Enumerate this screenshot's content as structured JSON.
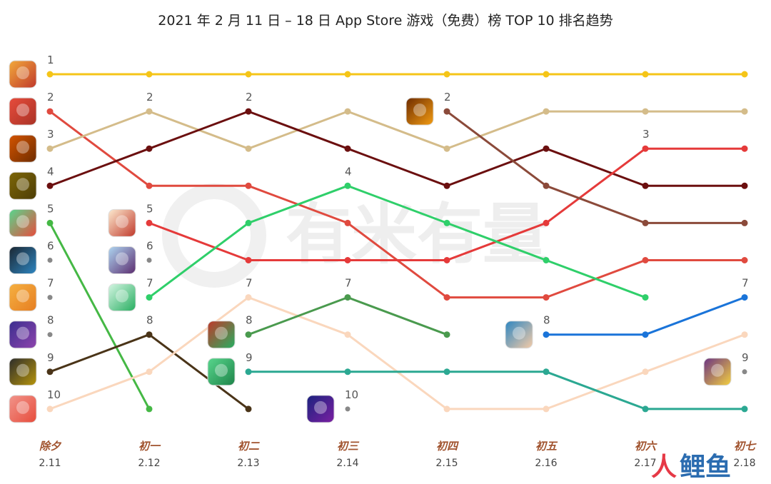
{
  "title": "2021 年 2 月 11 日 – 18 日 App Store 游戏（免费）榜 TOP 10 排名趋势",
  "watermark": "有米有量",
  "corner_logo": {
    "part1": "人",
    "part2": "鲤鱼"
  },
  "chart_data": {
    "type": "line",
    "title": "2021 年 2 月 11 日 – 18 日 App Store 游戏（免费）榜 TOP 10 排名趋势",
    "y_axis": "rank",
    "ylim": [
      1,
      10
    ],
    "y_inverted": true,
    "x_days": [
      "除夕",
      "初一",
      "初二",
      "初三",
      "初四",
      "初五",
      "初六",
      "初七"
    ],
    "x_dates": [
      "2.11",
      "2.12",
      "2.13",
      "2.14",
      "2.15",
      "2.16",
      "2.17",
      "2.18"
    ],
    "series": [
      {
        "color": "#f5c518",
        "values": [
          1,
          1,
          1,
          1,
          1,
          1,
          1,
          1
        ]
      },
      {
        "color": "#e04a3f",
        "values": [
          2,
          4,
          4,
          5,
          7,
          7,
          6,
          6
        ]
      },
      {
        "color": "#d4bc8a",
        "values": [
          3,
          2,
          3,
          2,
          3,
          2,
          2,
          2
        ]
      },
      {
        "color": "#6b0f0f",
        "values": [
          4,
          3,
          2,
          3,
          4,
          3,
          4,
          4
        ]
      },
      {
        "color": "#45b845",
        "values": [
          5,
          10,
          null,
          null,
          null,
          null,
          null,
          null
        ]
      },
      {
        "color": "#4a3418",
        "values": [
          9,
          8,
          10,
          null,
          null,
          null,
          null,
          null
        ]
      },
      {
        "color": "#fad7bd",
        "values": [
          10,
          9,
          7,
          8,
          10,
          10,
          9,
          8
        ]
      },
      {
        "color": "#e53a3a",
        "values": [
          null,
          5,
          6,
          6,
          6,
          5,
          3,
          3
        ]
      },
      {
        "color": "#2fcf6a",
        "values": [
          null,
          7,
          5,
          4,
          5,
          6,
          7,
          null
        ]
      },
      {
        "color": "#4a9a4e",
        "values": [
          null,
          null,
          8,
          7,
          8,
          null,
          null,
          null
        ]
      },
      {
        "color": "#2ba892",
        "values": [
          null,
          null,
          9,
          9,
          9,
          9,
          10,
          10
        ]
      },
      {
        "color": "#8b4a3a",
        "values": [
          null,
          null,
          null,
          null,
          2,
          4,
          5,
          5
        ]
      },
      {
        "color": "#1a74d9",
        "values": [
          null,
          null,
          null,
          null,
          null,
          8,
          8,
          7
        ]
      }
    ],
    "new_entry_labels": [
      {
        "col": 0,
        "rank": 1,
        "text": "1"
      },
      {
        "col": 0,
        "rank": 2,
        "text": "2"
      },
      {
        "col": 0,
        "rank": 3,
        "text": "3"
      },
      {
        "col": 0,
        "rank": 4,
        "text": "4"
      },
      {
        "col": 0,
        "rank": 5,
        "text": "5"
      },
      {
        "col": 0,
        "rank": 6,
        "text": "6"
      },
      {
        "col": 0,
        "rank": 7,
        "text": "7"
      },
      {
        "col": 0,
        "rank": 8,
        "text": "8"
      },
      {
        "col": 0,
        "rank": 9,
        "text": "9"
      },
      {
        "col": 0,
        "rank": 10,
        "text": "10"
      },
      {
        "col": 1,
        "rank": 2,
        "text": "2"
      },
      {
        "col": 1,
        "rank": 5,
        "text": "5"
      },
      {
        "col": 1,
        "rank": 6,
        "text": "6"
      },
      {
        "col": 1,
        "rank": 7,
        "text": "7"
      },
      {
        "col": 1,
        "rank": 8,
        "text": "8"
      },
      {
        "col": 2,
        "rank": 2,
        "text": "2"
      },
      {
        "col": 2,
        "rank": 7,
        "text": "7"
      },
      {
        "col": 2,
        "rank": 8,
        "text": "8"
      },
      {
        "col": 2,
        "rank": 9,
        "text": "9"
      },
      {
        "col": 3,
        "rank": 4,
        "text": "4"
      },
      {
        "col": 3,
        "rank": 7,
        "text": "7"
      },
      {
        "col": 3,
        "rank": 10,
        "text": "10"
      },
      {
        "col": 4,
        "rank": 2,
        "text": "2"
      },
      {
        "col": 5,
        "rank": 8,
        "text": "8"
      },
      {
        "col": 6,
        "rank": 3,
        "text": "3"
      },
      {
        "col": 7,
        "rank": 7,
        "text": "7"
      },
      {
        "col": 7,
        "rank": 9,
        "text": "9"
      }
    ],
    "gray_dots": [
      {
        "col": 0,
        "rank": 6
      },
      {
        "col": 0,
        "rank": 7
      },
      {
        "col": 0,
        "rank": 8
      },
      {
        "col": 1,
        "rank": 6
      },
      {
        "col": 3,
        "rank": 10
      },
      {
        "col": 7,
        "rank": 9
      }
    ],
    "app_icons": [
      {
        "col": 0,
        "rank": 1,
        "colors": [
          "#f2a93b",
          "#c0392b"
        ],
        "name": "game-icon-1"
      },
      {
        "col": 0,
        "rank": 2,
        "colors": [
          "#e74c3c",
          "#a93226"
        ],
        "name": "game-icon-2"
      },
      {
        "col": 0,
        "rank": 3,
        "colors": [
          "#d35400",
          "#6e2c00"
        ],
        "name": "game-icon-3"
      },
      {
        "col": 0,
        "rank": 4,
        "colors": [
          "#7d6608",
          "#4d3d05"
        ],
        "name": "game-icon-4"
      },
      {
        "col": 0,
        "rank": 5,
        "colors": [
          "#58d68d",
          "#e74c3c"
        ],
        "name": "game-icon-5"
      },
      {
        "col": 0,
        "rank": 6,
        "colors": [
          "#1b2631",
          "#2e86c1"
        ],
        "name": "game-icon-6"
      },
      {
        "col": 0,
        "rank": 7,
        "colors": [
          "#f5b041",
          "#e67e22"
        ],
        "name": "game-icon-7"
      },
      {
        "col": 0,
        "rank": 8,
        "colors": [
          "#3b2f8f",
          "#8e44ad"
        ],
        "name": "game-icon-8"
      },
      {
        "col": 0,
        "rank": 9,
        "colors": [
          "#2c2c2c",
          "#b7950b"
        ],
        "name": "game-icon-9"
      },
      {
        "col": 0,
        "rank": 10,
        "colors": [
          "#f1948a",
          "#e74c3c"
        ],
        "name": "game-icon-10"
      },
      {
        "col": 1,
        "rank": 5,
        "colors": [
          "#fdebd0",
          "#c0392b"
        ],
        "name": "game-icon-11"
      },
      {
        "col": 1,
        "rank": 6,
        "colors": [
          "#aed6f1",
          "#5b2c6f"
        ],
        "name": "game-icon-12"
      },
      {
        "col": 1,
        "rank": 7,
        "colors": [
          "#d5f5e3",
          "#27ae60"
        ],
        "name": "game-icon-13"
      },
      {
        "col": 2,
        "rank": 8,
        "colors": [
          "#c0392b",
          "#27ae60"
        ],
        "name": "game-icon-14"
      },
      {
        "col": 2,
        "rank": 9,
        "colors": [
          "#58d68d",
          "#1e8449"
        ],
        "name": "game-icon-15"
      },
      {
        "col": 3,
        "rank": 10,
        "colors": [
          "#1a237e",
          "#7b1fa2"
        ],
        "name": "game-icon-16"
      },
      {
        "col": 4,
        "rank": 2,
        "colors": [
          "#6e2c00",
          "#f39c12"
        ],
        "name": "game-icon-17"
      },
      {
        "col": 5,
        "rank": 8,
        "colors": [
          "#2e86c1",
          "#f5cba7"
        ],
        "name": "game-icon-18"
      },
      {
        "col": 7,
        "rank": 9,
        "colors": [
          "#6c3483",
          "#f4d03f"
        ],
        "name": "game-icon-19"
      }
    ]
  }
}
